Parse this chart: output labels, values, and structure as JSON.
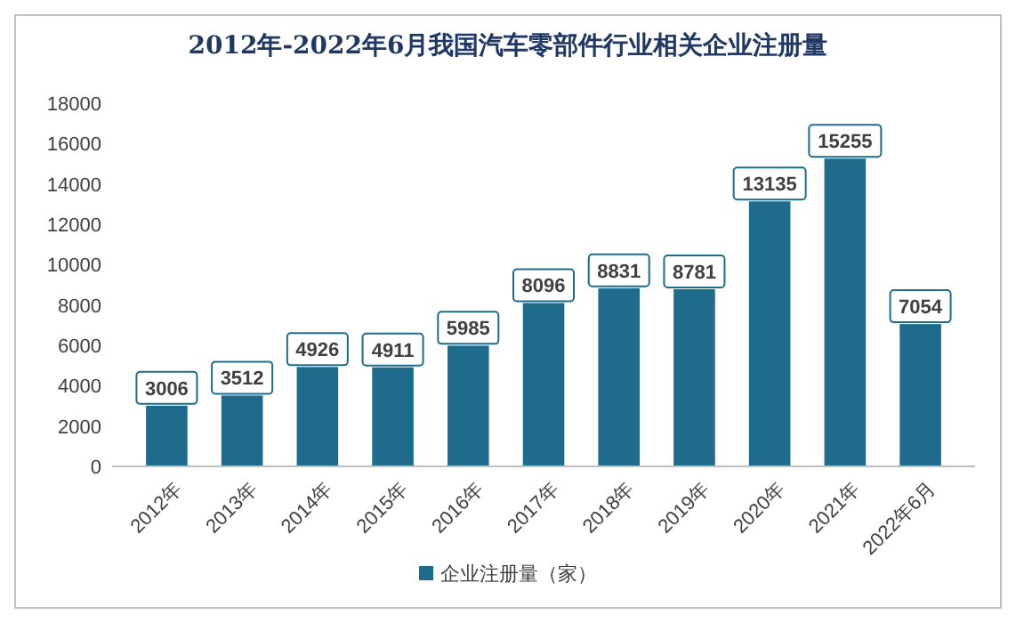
{
  "chart_data": {
    "type": "bar",
    "title": "2012年-2022年6月我国汽车零部件行业相关企业注册量",
    "categories": [
      "2012年",
      "2013年",
      "2014年",
      "2015年",
      "2016年",
      "2017年",
      "2018年",
      "2019年",
      "2020年",
      "2021年",
      "2022年6月"
    ],
    "series": [
      {
        "name": "企业注册量（家）",
        "color": "#1f6b8c",
        "values": [
          3006,
          3512,
          4926,
          4911,
          5985,
          8096,
          8831,
          8781,
          13135,
          15255,
          7054
        ]
      }
    ],
    "ylim": [
      0,
      18000
    ],
    "yticks": [
      0,
      2000,
      4000,
      6000,
      8000,
      10000,
      12000,
      14000,
      16000,
      18000
    ],
    "data_labels": true,
    "legend": "bottom",
    "grid": false
  }
}
